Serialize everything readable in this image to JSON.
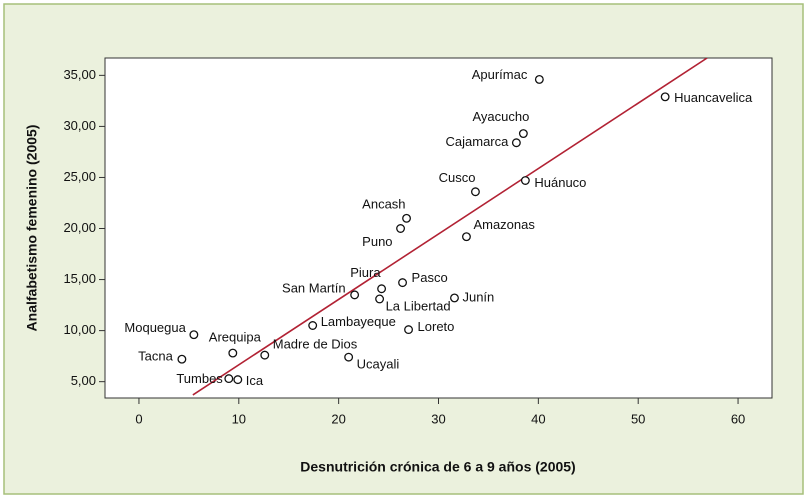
{
  "chart_data": {
    "type": "scatter",
    "xlabel": "Desnutrición crónica de 6 a 9 años (2005)",
    "ylabel": "Analfabetismo femenino (2005)",
    "labels": [
      "Apurímac",
      "Huancavelica",
      "Ayacucho",
      "Cajamarca",
      "Cusco",
      "Huánuco",
      "Ancash",
      "Puno",
      "Amazonas",
      "Piura",
      "Pasco",
      "San Martín",
      "La Libertad",
      "Junín",
      "Lambayeque",
      "Loreto",
      "Moquegua",
      "Arequipa",
      "Madre de Dios",
      "Ucayali",
      "Tacna",
      "Tumbes",
      "Ica"
    ],
    "x": [
      40.1,
      52.7,
      38.5,
      37.8,
      33.7,
      38.7,
      26.8,
      26.2,
      32.8,
      24.3,
      26.4,
      21.6,
      24.1,
      31.6,
      17.4,
      27.0,
      5.5,
      9.4,
      12.6,
      21.0,
      4.3,
      9.0,
      9.9
    ],
    "y": [
      34.6,
      32.9,
      29.3,
      28.4,
      23.6,
      24.7,
      21.0,
      20.0,
      19.2,
      14.1,
      14.7,
      13.5,
      13.1,
      13.2,
      10.5,
      10.1,
      9.6,
      7.8,
      7.6,
      7.4,
      7.2,
      5.3,
      5.2
    ],
    "fit_line": {
      "x": [
        5.4,
        56.9
      ],
      "y": [
        3.7,
        36.7
      ],
      "color": "#b22234"
    },
    "xlim": [
      -3.4,
      63.4
    ],
    "ylim": [
      3.4,
      36.7
    ],
    "xticks": [
      0,
      10,
      20,
      30,
      40,
      50,
      60
    ],
    "yticks": [
      {
        "value": 5,
        "label": "5,00"
      },
      {
        "value": 10,
        "label": "10,00"
      },
      {
        "value": 15,
        "label": "15,00"
      },
      {
        "value": 20,
        "label": "20,00"
      },
      {
        "value": 25,
        "label": "25,00"
      },
      {
        "value": 30,
        "label": "30,00"
      },
      {
        "value": 35,
        "label": "35,00"
      }
    ]
  }
}
